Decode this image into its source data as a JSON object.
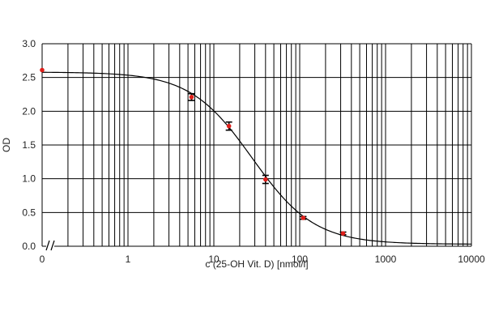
{
  "chart_data": {
    "type": "scatter",
    "xlabel": "c (25-OH Vit. D) [nmol/l]",
    "ylabel": "OD",
    "xscale": "log",
    "xlim": [
      0.1,
      10000
    ],
    "ylim": [
      0,
      3.0
    ],
    "grid": true,
    "axis_break": "x",
    "x_tick_labels": [
      "0",
      "1",
      "10",
      "100",
      "1000",
      "10000"
    ],
    "x_tick_values": [
      0,
      1,
      10,
      100,
      1000,
      10000
    ],
    "y_tick_labels": [
      "0.0",
      "0.5",
      "1.0",
      "1.5",
      "2.0",
      "2.5",
      "3.0"
    ],
    "y_tick_values": [
      0,
      0.5,
      1.0,
      1.5,
      2.0,
      2.5,
      3.0
    ],
    "series": [
      {
        "points": [
          {
            "x": 0,
            "y": 2.61,
            "err": 0
          },
          {
            "x": 5.5,
            "y": 2.21,
            "err": 0.05
          },
          {
            "x": 15,
            "y": 1.78,
            "err": 0.06
          },
          {
            "x": 40,
            "y": 0.99,
            "err": 0.06
          },
          {
            "x": 110,
            "y": 0.42,
            "err": 0.02
          },
          {
            "x": 320,
            "y": 0.19,
            "err": 0.02
          }
        ]
      }
    ],
    "fit_curve": {
      "type": "4pl",
      "top": 2.58,
      "bottom": 0.03,
      "ec50": 28,
      "hill": 1.2
    },
    "colors": {
      "marker": "#e0201b",
      "error_bar": "#000000",
      "curve": "#000000",
      "grid": "#000000",
      "plot_bg": "#ffffff"
    }
  }
}
